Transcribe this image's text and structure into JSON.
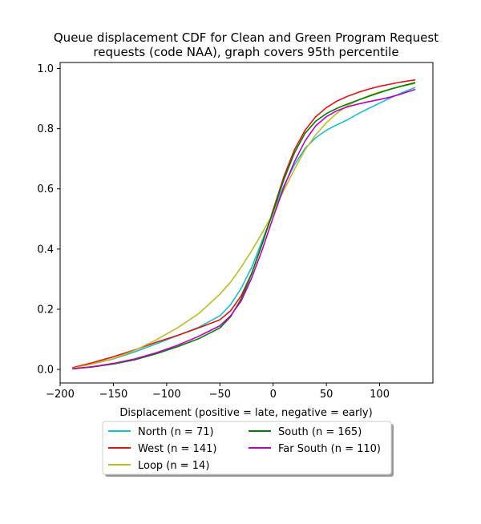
{
  "chart_data": {
    "type": "line",
    "title": "Queue displacement CDF for Clean and Green Program Request\nrequests (code NAA), graph covers 95th percentile",
    "xlabel": "Displacement (positive = late, negative = early)",
    "ylabel": "",
    "xlim": [
      -200,
      150
    ],
    "ylim": [
      -0.045,
      1.02
    ],
    "xticks": [
      -200,
      -150,
      -100,
      -50,
      0,
      50,
      100
    ],
    "xtick_labels": [
      "−200",
      "−150",
      "−100",
      "−50",
      "0",
      "50",
      "100"
    ],
    "yticks": [
      0.0,
      0.2,
      0.4,
      0.6,
      0.8,
      1.0
    ],
    "ytick_labels": [
      "0.0",
      "0.2",
      "0.4",
      "0.6",
      "0.8",
      "1.0"
    ],
    "grid": false,
    "legend_position": "below-plot",
    "series": [
      {
        "name": "North (n = 71)",
        "color": "#17becf",
        "x": [
          -188,
          -170,
          -150,
          -130,
          -110,
          -90,
          -70,
          -50,
          -40,
          -30,
          -20,
          -10,
          0,
          10,
          20,
          30,
          40,
          50,
          60,
          70,
          80,
          90,
          100,
          110,
          120,
          133
        ],
        "y": [
          0.005,
          0.018,
          0.035,
          0.058,
          0.085,
          0.112,
          0.14,
          0.178,
          0.215,
          0.27,
          0.34,
          0.43,
          0.52,
          0.61,
          0.68,
          0.735,
          0.77,
          0.795,
          0.813,
          0.83,
          0.85,
          0.868,
          0.885,
          0.902,
          0.918,
          0.937
        ]
      },
      {
        "name": "West (n = 141)",
        "color": "#e3140f",
        "x": [
          -188,
          -170,
          -150,
          -130,
          -110,
          -90,
          -70,
          -50,
          -40,
          -30,
          -20,
          -10,
          0,
          10,
          20,
          30,
          40,
          50,
          60,
          70,
          80,
          90,
          100,
          110,
          120,
          133
        ],
        "y": [
          0.006,
          0.022,
          0.042,
          0.065,
          0.09,
          0.113,
          0.138,
          0.165,
          0.195,
          0.245,
          0.32,
          0.42,
          0.53,
          0.64,
          0.73,
          0.795,
          0.84,
          0.87,
          0.892,
          0.908,
          0.921,
          0.932,
          0.941,
          0.948,
          0.955,
          0.962
        ]
      },
      {
        "name": "Loop (n = 14)",
        "color": "#bcbd22",
        "x": [
          -188,
          -170,
          -150,
          -130,
          -110,
          -90,
          -70,
          -50,
          -40,
          -30,
          -20,
          -10,
          0,
          10,
          20,
          30,
          40,
          50,
          60,
          70,
          80,
          90,
          100,
          110,
          120,
          133
        ],
        "y": [
          0.004,
          0.018,
          0.036,
          0.063,
          0.098,
          0.138,
          0.185,
          0.25,
          0.29,
          0.34,
          0.395,
          0.455,
          0.52,
          0.595,
          0.665,
          0.73,
          0.78,
          0.82,
          0.852,
          0.877,
          0.895,
          0.91,
          0.922,
          0.932,
          0.941,
          0.95
        ]
      },
      {
        "name": "South (n = 165)",
        "color": "#008000",
        "x": [
          -188,
          -170,
          -150,
          -130,
          -110,
          -90,
          -70,
          -50,
          -40,
          -30,
          -20,
          -10,
          0,
          10,
          20,
          30,
          40,
          50,
          60,
          70,
          80,
          90,
          100,
          110,
          120,
          133
        ],
        "y": [
          0.002,
          0.008,
          0.018,
          0.032,
          0.052,
          0.075,
          0.102,
          0.138,
          0.175,
          0.235,
          0.32,
          0.42,
          0.525,
          0.63,
          0.72,
          0.785,
          0.825,
          0.85,
          0.868,
          0.882,
          0.895,
          0.908,
          0.92,
          0.931,
          0.941,
          0.953
        ]
      },
      {
        "name": "Far South (n = 110)",
        "color": "#bf00bf",
        "x": [
          -188,
          -170,
          -150,
          -130,
          -110,
          -90,
          -70,
          -50,
          -40,
          -30,
          -20,
          -10,
          0,
          10,
          20,
          30,
          40,
          50,
          60,
          70,
          80,
          90,
          100,
          110,
          120,
          133
        ],
        "y": [
          0.002,
          0.009,
          0.02,
          0.035,
          0.055,
          0.08,
          0.11,
          0.145,
          0.178,
          0.228,
          0.305,
          0.4,
          0.505,
          0.605,
          0.69,
          0.76,
          0.81,
          0.84,
          0.86,
          0.873,
          0.882,
          0.89,
          0.897,
          0.905,
          0.915,
          0.93
        ]
      }
    ]
  }
}
